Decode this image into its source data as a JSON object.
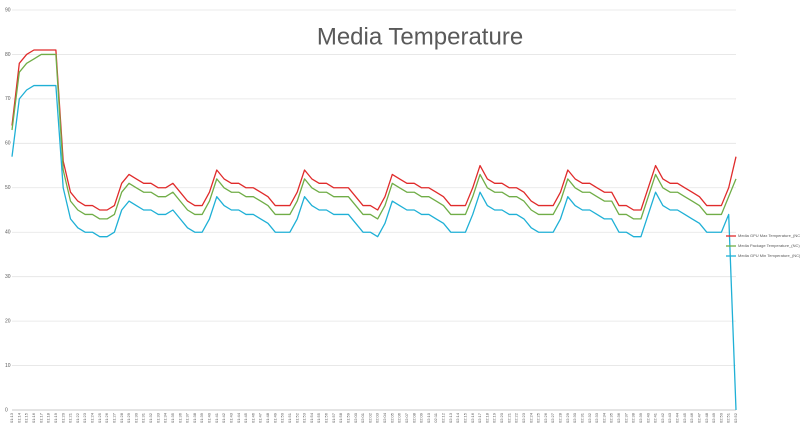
{
  "chart_data": {
    "type": "line",
    "title": "Media Temperature",
    "categories": [
      "01:13",
      "01:14",
      "01:15",
      "01:16",
      "01:17",
      "01:18",
      "01:19",
      "01:20",
      "01:21",
      "01:22",
      "01:23",
      "01:24",
      "01:25",
      "01:26",
      "01:27",
      "01:28",
      "01:29",
      "01:30",
      "01:31",
      "01:32",
      "01:33",
      "01:34",
      "01:35",
      "01:36",
      "01:37",
      "01:38",
      "01:39",
      "01:40",
      "01:41",
      "01:42",
      "01:43",
      "01:44",
      "01:45",
      "01:46",
      "01:47",
      "01:48",
      "01:49",
      "01:50",
      "01:51",
      "01:52",
      "01:53",
      "01:54",
      "01:55",
      "01:56",
      "01:57",
      "01:58",
      "01:59",
      "02:00",
      "02:01",
      "02:02",
      "02:03",
      "02:04",
      "02:05",
      "02:06",
      "02:07",
      "02:08",
      "02:09",
      "02:10",
      "02:11",
      "02:12",
      "02:13",
      "02:14",
      "02:15",
      "02:16",
      "02:17",
      "02:18",
      "02:19",
      "02:20",
      "02:21",
      "02:22",
      "02:23",
      "02:24",
      "02:25",
      "02:26",
      "02:27",
      "02:28",
      "02:29",
      "02:30",
      "02:31",
      "02:32",
      "02:33",
      "02:34",
      "02:35",
      "02:36",
      "02:37",
      "02:38",
      "02:39",
      "02:40",
      "02:41",
      "02:42",
      "02:43",
      "02:44",
      "02:45",
      "02:46",
      "02:47",
      "02:48",
      "02:49",
      "02:50",
      "02:51",
      "02:52"
    ],
    "series": [
      {
        "name": "Media GPU Max Temperature_(NC)",
        "color": "#e02b2b",
        "values": [
          64,
          78,
          80,
          81,
          81,
          81,
          81,
          56,
          49,
          47,
          46,
          46,
          45,
          45,
          46,
          51,
          53,
          52,
          51,
          51,
          50,
          50,
          51,
          49,
          47,
          46,
          46,
          49,
          54,
          52,
          51,
          51,
          50,
          50,
          49,
          48,
          46,
          46,
          46,
          49,
          54,
          52,
          51,
          51,
          50,
          50,
          50,
          48,
          46,
          46,
          45,
          48,
          53,
          52,
          51,
          51,
          50,
          50,
          49,
          48,
          46,
          46,
          46,
          50,
          55,
          52,
          51,
          51,
          50,
          50,
          49,
          47,
          46,
          46,
          46,
          49,
          54,
          52,
          51,
          51,
          50,
          49,
          49,
          46,
          46,
          45,
          45,
          50,
          55,
          52,
          51,
          51,
          50,
          49,
          48,
          46,
          46,
          46,
          50,
          57
        ]
      },
      {
        "name": "Media Package Temperature_(NC)",
        "color": "#70ad47",
        "values": [
          63,
          76,
          78,
          79,
          80,
          80,
          80,
          54,
          47,
          45,
          44,
          44,
          43,
          43,
          44,
          49,
          51,
          50,
          49,
          49,
          48,
          48,
          49,
          47,
          45,
          44,
          44,
          47,
          52,
          50,
          49,
          49,
          48,
          48,
          47,
          46,
          44,
          44,
          44,
          47,
          52,
          50,
          49,
          49,
          48,
          48,
          48,
          46,
          44,
          44,
          43,
          46,
          51,
          50,
          49,
          49,
          48,
          48,
          47,
          46,
          44,
          44,
          44,
          48,
          53,
          50,
          49,
          49,
          48,
          48,
          47,
          45,
          44,
          44,
          44,
          47,
          52,
          50,
          49,
          49,
          48,
          47,
          47,
          44,
          44,
          43,
          43,
          48,
          53,
          50,
          49,
          49,
          48,
          47,
          46,
          44,
          44,
          44,
          48,
          52
        ]
      },
      {
        "name": "Media GPU Min Temperature_(NC)",
        "color": "#1fb0d6",
        "values": [
          57,
          70,
          72,
          73,
          73,
          73,
          73,
          50,
          43,
          41,
          40,
          40,
          39,
          39,
          40,
          45,
          47,
          46,
          45,
          45,
          44,
          44,
          45,
          43,
          41,
          40,
          40,
          43,
          48,
          46,
          45,
          45,
          44,
          44,
          43,
          42,
          40,
          40,
          40,
          43,
          48,
          46,
          45,
          45,
          44,
          44,
          44,
          42,
          40,
          40,
          39,
          42,
          47,
          46,
          45,
          45,
          44,
          44,
          43,
          42,
          40,
          40,
          40,
          44,
          49,
          46,
          45,
          45,
          44,
          44,
          43,
          41,
          40,
          40,
          40,
          43,
          48,
          46,
          45,
          45,
          44,
          43,
          43,
          40,
          40,
          39,
          39,
          44,
          49,
          46,
          45,
          45,
          44,
          43,
          42,
          40,
          40,
          40,
          44,
          0
        ]
      }
    ],
    "ylim": [
      0,
      90
    ],
    "yticks": [
      0,
      10,
      20,
      30,
      40,
      50,
      60,
      70,
      80,
      90
    ],
    "grid": true,
    "legend": "right"
  }
}
